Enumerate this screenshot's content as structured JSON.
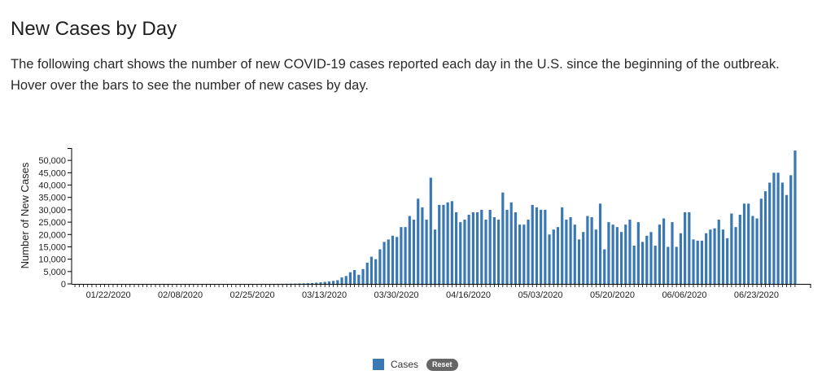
{
  "page": {
    "title": "New Cases by Day",
    "description": "The following chart shows the number of new COVID-19 cases reported each day in the U.S. since the beginning of the outbreak. Hover over the bars to see the number of new cases by day."
  },
  "legend": {
    "series_label": "Cases",
    "reset_label": "Reset"
  },
  "colors": {
    "bar": "#3a78b4"
  },
  "chart_data": {
    "type": "bar",
    "title": "",
    "xlabel": "",
    "ylabel": "Number of New Cases",
    "ylim": [
      0,
      55000
    ],
    "y_ticks": [
      0,
      5000,
      10000,
      15000,
      20000,
      25000,
      30000,
      35000,
      40000,
      45000,
      50000
    ],
    "y_tick_labels": [
      "0",
      "5,000",
      "10,000",
      "15,000",
      "20,000",
      "25,000",
      "30,000",
      "35,000",
      "40,000",
      "45,000",
      "50,000"
    ],
    "x_tick_labels": [
      "01/22/2020",
      "02/08/2020",
      "02/25/2020",
      "03/13/2020",
      "03/30/2020",
      "04/16/2020",
      "05/03/2020",
      "05/20/2020",
      "06/06/2020",
      "06/23/2020"
    ],
    "x_start": "01/22/2020",
    "x_end": "07/01/2020",
    "legend": "bottom-center",
    "grid": false,
    "series": [
      {
        "name": "Cases",
        "values": [
          1,
          0,
          1,
          0,
          2,
          0,
          0,
          0,
          1,
          0,
          1,
          0,
          0,
          0,
          0,
          0,
          0,
          1,
          0,
          0,
          0,
          0,
          0,
          0,
          0,
          0,
          0,
          0,
          0,
          0,
          0,
          0,
          0,
          0,
          0,
          0,
          0,
          0,
          0,
          0,
          1,
          1,
          0,
          2,
          3,
          6,
          8,
          15,
          25,
          40,
          60,
          95,
          120,
          160,
          220,
          280,
          360,
          500,
          620,
          800,
          1000,
          1200,
          1500,
          2600,
          3200,
          4700,
          5600,
          3700,
          6000,
          8600,
          11000,
          10000,
          14000,
          17000,
          18000,
          19500,
          19000,
          23000,
          23000,
          27500,
          26000,
          34500,
          31000,
          26000,
          43000,
          22000,
          32000,
          32000,
          33000,
          33500,
          29000,
          25000,
          26000,
          28000,
          29000,
          29000,
          30000,
          26000,
          30000,
          27000,
          26000,
          37000,
          30000,
          33000,
          29000,
          24000,
          24000,
          26000,
          32000,
          31000,
          30000,
          30000,
          20000,
          22000,
          23000,
          31000,
          26000,
          27000,
          24000,
          18000,
          21000,
          27500,
          27000,
          22000,
          32500,
          14000,
          25000,
          24000,
          23000,
          21000,
          24000,
          26000,
          15500,
          25000,
          17000,
          19500,
          21000,
          15500,
          24000,
          26500,
          15000,
          25000,
          15000,
          20500,
          29000,
          29000,
          18000,
          17500,
          17500,
          20500,
          22000,
          22500,
          26000,
          22000,
          18500,
          28500,
          23000,
          28000,
          32500,
          32500,
          27500,
          26500,
          34500,
          37500,
          41000,
          45000,
          45000,
          41000,
          36000,
          44000,
          54000
        ]
      }
    ]
  }
}
